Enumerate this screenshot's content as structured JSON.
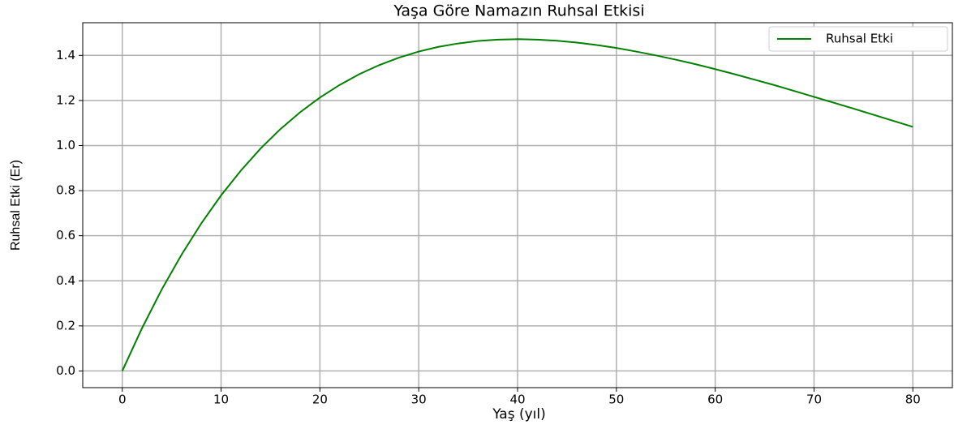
{
  "chart_data": {
    "type": "line",
    "title": "Yaşa Göre Namazın Ruhsal Etkisi",
    "x_label": "Yaş (yıl)",
    "y_label": "Ruhsal Etki (Er)",
    "x": [
      0,
      2,
      4,
      6,
      8,
      10,
      12,
      14,
      16,
      18,
      20,
      22,
      24,
      26,
      28,
      30,
      32,
      34,
      36,
      38,
      40,
      42,
      44,
      46,
      48,
      50,
      52,
      54,
      56,
      58,
      60,
      62,
      64,
      66,
      68,
      70,
      72,
      74,
      76,
      78,
      80
    ],
    "series": [
      {
        "name": "Ruhsal Etki",
        "color": "#008000",
        "values": [
          0,
          0.19,
          0.362,
          0.516,
          0.655,
          0.779,
          0.889,
          0.987,
          1.073,
          1.148,
          1.213,
          1.269,
          1.317,
          1.357,
          1.39,
          1.417,
          1.438,
          1.453,
          1.464,
          1.47,
          1.472,
          1.47,
          1.465,
          1.457,
          1.446,
          1.433,
          1.417,
          1.4,
          1.381,
          1.361,
          1.339,
          1.316,
          1.292,
          1.268,
          1.242,
          1.216,
          1.19,
          1.164,
          1.137,
          1.11,
          1.083
        ]
      }
    ],
    "xlim": [
      -4,
      84
    ],
    "ylim": [
      -0.074,
      1.545
    ],
    "xticks": [
      0,
      10,
      20,
      30,
      40,
      50,
      60,
      70,
      80
    ],
    "yticks": [
      {
        "value": 0,
        "label": "0.0"
      },
      0.2,
      0.4,
      0.6,
      0.8,
      {
        "value": 1,
        "label": "1.0"
      },
      1.2,
      1.4
    ],
    "grid": true,
    "legend": "upper right"
  }
}
